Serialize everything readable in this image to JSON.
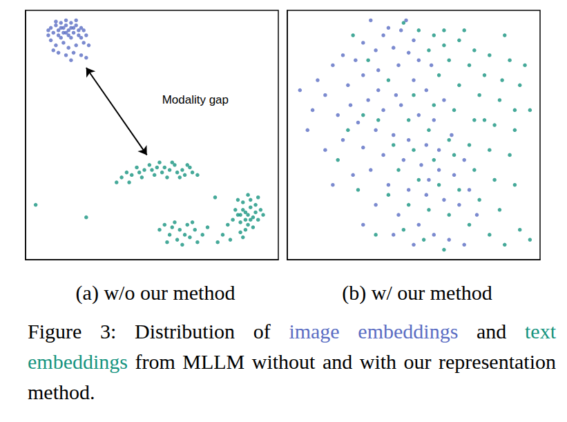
{
  "chart_data": [
    {
      "type": "scatter",
      "subtitle": "(a) w/o our method",
      "xlim": [
        0,
        100
      ],
      "ylim": [
        0,
        100
      ],
      "tick_labels": false,
      "series": [
        {
          "name": "image embeddings",
          "color": "#5a6dc3",
          "values": [
            [
              10,
              93
            ],
            [
              12,
              94
            ],
            [
              13,
              92
            ],
            [
              14,
              95
            ],
            [
              15,
              93
            ],
            [
              16,
              94
            ],
            [
              17,
              92
            ],
            [
              18,
              95
            ],
            [
              19,
              93
            ],
            [
              20,
              94
            ],
            [
              21,
              92
            ],
            [
              22,
              93
            ],
            [
              11,
              91
            ],
            [
              13,
              90
            ],
            [
              15,
              91
            ],
            [
              17,
              90
            ],
            [
              19,
              91
            ],
            [
              21,
              90
            ],
            [
              23,
              92
            ],
            [
              9,
              92
            ],
            [
              12,
              95.5
            ],
            [
              16,
              96
            ],
            [
              20,
              96
            ],
            [
              14,
              89
            ],
            [
              18,
              89
            ],
            [
              22,
              89
            ],
            [
              10,
              88
            ],
            [
              12,
              86
            ],
            [
              15,
              87
            ],
            [
              17,
              85
            ],
            [
              20,
              86
            ],
            [
              23,
              87
            ],
            [
              25,
              86
            ],
            [
              13,
              83
            ],
            [
              16,
              82
            ],
            [
              19,
              83
            ],
            [
              22,
              82
            ],
            [
              24,
              81
            ],
            [
              11,
              84
            ],
            [
              18,
              80
            ],
            [
              9,
              90
            ],
            [
              24,
              90
            ],
            [
              16,
              91
            ],
            [
              14,
              93
            ],
            [
              18,
              93
            ]
          ]
        },
        {
          "name": "text embeddings",
          "color": "#16947f",
          "values": [
            [
              38,
              33
            ],
            [
              40,
              35
            ],
            [
              42,
              34
            ],
            [
              44,
              37
            ],
            [
              45,
              35
            ],
            [
              47,
              36
            ],
            [
              49,
              38
            ],
            [
              50,
              36
            ],
            [
              52,
              37
            ],
            [
              54,
              35
            ],
            [
              55,
              37
            ],
            [
              57,
              36
            ],
            [
              59,
              38
            ],
            [
              60,
              35
            ],
            [
              62,
              36
            ],
            [
              63,
              34
            ],
            [
              65,
              37
            ],
            [
              66,
              35
            ],
            [
              68,
              34
            ],
            [
              46,
              33
            ],
            [
              51,
              34
            ],
            [
              56,
              33
            ],
            [
              61,
              33
            ],
            [
              41,
              31
            ],
            [
              36,
              31
            ],
            [
              53,
              39
            ],
            [
              58,
              39
            ],
            [
              64,
              38
            ],
            [
              53,
              12
            ],
            [
              55,
              14
            ],
            [
              57,
              10
            ],
            [
              58,
              13
            ],
            [
              60,
              8
            ],
            [
              61,
              12
            ],
            [
              63,
              10
            ],
            [
              64,
              14
            ],
            [
              65,
              9
            ],
            [
              67,
              12
            ],
            [
              68,
              7
            ],
            [
              70,
              10
            ],
            [
              56,
              7
            ],
            [
              62,
              6
            ],
            [
              59,
              15
            ],
            [
              66,
              15
            ],
            [
              72,
              13
            ],
            [
              84,
              18
            ],
            [
              86,
              20
            ],
            [
              87,
              16
            ],
            [
              88,
              18
            ],
            [
              89,
              21
            ],
            [
              90,
              17
            ],
            [
              91,
              19
            ],
            [
              85,
              15
            ],
            [
              88,
              14
            ],
            [
              90,
              13
            ],
            [
              92,
              16
            ],
            [
              86,
              23
            ],
            [
              89,
              24
            ],
            [
              83,
              20
            ],
            [
              93,
              20
            ],
            [
              87,
              12
            ],
            [
              85,
              11
            ],
            [
              91,
              22
            ],
            [
              94,
              18
            ],
            [
              82,
              16
            ],
            [
              88,
              26
            ],
            [
              84,
              24
            ],
            [
              80,
              14
            ],
            [
              78,
              10
            ],
            [
              81,
              8
            ],
            [
              86,
              9
            ],
            [
              76,
              7
            ],
            [
              92,
              25
            ],
            [
              87,
              19
            ],
            [
              89,
              16
            ],
            [
              85,
              18
            ],
            [
              4,
              22
            ],
            [
              24,
              17
            ],
            [
              75,
              25
            ]
          ]
        }
      ],
      "annotations": [
        {
          "text": "Modality gap",
          "x": 54,
          "y": 64,
          "arrow": [
            [
              24,
              77
            ],
            [
              48,
              42
            ]
          ]
        }
      ]
    },
    {
      "type": "scatter",
      "subtitle": "(b) w/ our method",
      "xlim": [
        0,
        100
      ],
      "ylim": [
        0,
        100
      ],
      "tick_labels": false,
      "series": [
        {
          "name": "image embeddings",
          "color": "#5a6dc3",
          "values": [
            [
              33,
              96
            ],
            [
              40,
              93
            ],
            [
              45,
              92
            ],
            [
              50,
              88
            ],
            [
              38,
              90
            ],
            [
              30,
              87
            ],
            [
              35,
              84
            ],
            [
              42,
              85
            ],
            [
              48,
              83
            ],
            [
              52,
              80
            ],
            [
              27,
              80
            ],
            [
              22,
              82
            ],
            [
              18,
              78
            ],
            [
              12,
              72
            ],
            [
              5,
              68
            ],
            [
              15,
              66
            ],
            [
              24,
              70
            ],
            [
              30,
              74
            ],
            [
              36,
              76
            ],
            [
              44,
              78
            ],
            [
              50,
              72
            ],
            [
              55,
              68
            ],
            [
              25,
              62
            ],
            [
              32,
              64
            ],
            [
              38,
              60
            ],
            [
              45,
              62
            ],
            [
              52,
              58
            ],
            [
              58,
              56
            ],
            [
              20,
              58
            ],
            [
              10,
              60
            ],
            [
              28,
              55
            ],
            [
              35,
              52
            ],
            [
              42,
              50
            ],
            [
              48,
              48
            ],
            [
              55,
              46
            ],
            [
              60,
              44
            ],
            [
              65,
              50
            ],
            [
              30,
              45
            ],
            [
              22,
              48
            ],
            [
              38,
              42
            ],
            [
              46,
              40
            ],
            [
              53,
              38
            ],
            [
              60,
              36
            ],
            [
              66,
              34
            ],
            [
              70,
              40
            ],
            [
              33,
              36
            ],
            [
              26,
              34
            ],
            [
              40,
              30
            ],
            [
              48,
              28
            ],
            [
              55,
              26
            ],
            [
              62,
              24
            ],
            [
              68,
              22
            ],
            [
              72,
              28
            ],
            [
              35,
              22
            ],
            [
              44,
              18
            ],
            [
              52,
              14
            ],
            [
              58,
              10
            ],
            [
              64,
              8
            ],
            [
              70,
              6
            ],
            [
              50,
              6
            ],
            [
              42,
              10
            ],
            [
              30,
              14
            ],
            [
              18,
              30
            ],
            [
              15,
              44
            ],
            [
              8,
              52
            ],
            [
              62,
              64
            ],
            [
              57,
              78
            ],
            [
              47,
              96
            ],
            [
              75,
              18
            ],
            [
              56,
              32
            ],
            [
              43,
              66
            ],
            [
              36,
              68
            ]
          ]
        },
        {
          "name": "text embeddings",
          "color": "#16947f",
          "values": [
            [
              46,
              95
            ],
            [
              52,
              92
            ],
            [
              58,
              90
            ],
            [
              62,
              86
            ],
            [
              68,
              88
            ],
            [
              74,
              84
            ],
            [
              80,
              82
            ],
            [
              88,
              80
            ],
            [
              94,
              78
            ],
            [
              56,
              84
            ],
            [
              64,
              80
            ],
            [
              72,
              78
            ],
            [
              78,
              74
            ],
            [
              85,
              72
            ],
            [
              92,
              70
            ],
            [
              60,
              74
            ],
            [
              68,
              70
            ],
            [
              76,
              66
            ],
            [
              84,
              64
            ],
            [
              96,
              60
            ],
            [
              50,
              66
            ],
            [
              58,
              62
            ],
            [
              66,
              60
            ],
            [
              74,
              56
            ],
            [
              82,
              54
            ],
            [
              90,
              52
            ],
            [
              48,
              56
            ],
            [
              56,
              52
            ],
            [
              64,
              48
            ],
            [
              72,
              46
            ],
            [
              80,
              44
            ],
            [
              88,
              42
            ],
            [
              42,
              46
            ],
            [
              50,
              44
            ],
            [
              58,
              40
            ],
            [
              66,
              42
            ],
            [
              74,
              36
            ],
            [
              82,
              32
            ],
            [
              90,
              30
            ],
            [
              44,
              36
            ],
            [
              52,
              32
            ],
            [
              60,
              30
            ],
            [
              68,
              28
            ],
            [
              76,
              24
            ],
            [
              84,
              20
            ],
            [
              92,
              12
            ],
            [
              96,
              8
            ],
            [
              40,
              26
            ],
            [
              48,
              22
            ],
            [
              56,
              20
            ],
            [
              64,
              18
            ],
            [
              72,
              14
            ],
            [
              80,
              10
            ],
            [
              46,
              12
            ],
            [
              54,
              8
            ],
            [
              62,
              4
            ],
            [
              86,
              6
            ],
            [
              24,
              52
            ],
            [
              30,
              58
            ],
            [
              36,
              56
            ],
            [
              26,
              90
            ],
            [
              32,
              80
            ],
            [
              40,
              72
            ],
            [
              70,
              92
            ],
            [
              86,
              90
            ],
            [
              90,
              60
            ],
            [
              20,
              40
            ],
            [
              28,
              28
            ],
            [
              35,
              10
            ],
            [
              78,
              56
            ],
            [
              62,
              92
            ]
          ]
        }
      ]
    }
  ],
  "caption": [
    {
      "text": "Figure 3: Distribution of "
    },
    {
      "text": "image embeddings",
      "color": "#5a6dc3"
    },
    {
      "text": " and "
    },
    {
      "text": "text embeddings",
      "color": "#16947f"
    },
    {
      "text": " from MLLM without and with our representation method."
    }
  ]
}
